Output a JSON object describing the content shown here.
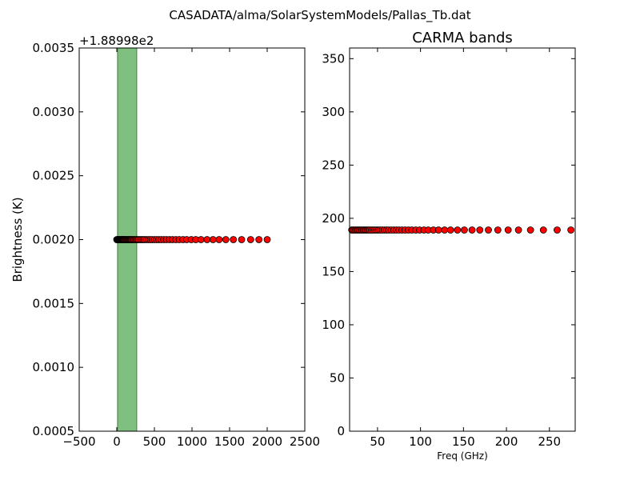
{
  "figure": {
    "title": "CASADATA/alma/SolarSystemModels/Pallas_Tb.dat"
  },
  "chart_data": [
    {
      "type": "scatter",
      "title": "",
      "xlabel": "",
      "ylabel": "Brightness (K)",
      "offset_label": "+1.88998e2",
      "xlim": [
        -500,
        2500
      ],
      "ylim": [
        0.0005,
        0.0035
      ],
      "xticks": [
        -500,
        0,
        500,
        1000,
        1500,
        2000,
        2500
      ],
      "xtick_labels": [
        "−500",
        "0",
        "500",
        "1000",
        "1500",
        "2000",
        "2500"
      ],
      "yticks": [
        0.0005,
        0.001,
        0.0015,
        0.002,
        0.0025,
        0.003,
        0.0035
      ],
      "ytick_labels": [
        "0.0005",
        "0.0010",
        "0.0015",
        "0.0020",
        "0.0025",
        "0.0030",
        "0.0035"
      ],
      "band": {
        "x0": 10,
        "x1": 265,
        "color": "#7fbf7f"
      },
      "marker_color": "#ff0000",
      "x": [
        0,
        5,
        10,
        15,
        20,
        25,
        30,
        35,
        40,
        45,
        50,
        55,
        60,
        65,
        70,
        75,
        80,
        85,
        90,
        95,
        100,
        110,
        120,
        130,
        140,
        150,
        160,
        170,
        180,
        190,
        200,
        215,
        230,
        245,
        260,
        275,
        290,
        310,
        330,
        350,
        370,
        395,
        420,
        445,
        470,
        500,
        530,
        560,
        590,
        625,
        660,
        700,
        740,
        785,
        830,
        880,
        930,
        990,
        1050,
        1120,
        1200,
        1280,
        1360,
        1450,
        1550,
        1660,
        1780,
        1890,
        2000
      ],
      "y": 0.002
    },
    {
      "type": "scatter",
      "title": "CARMA bands",
      "xlabel": "Freq (GHz)",
      "ylabel": "",
      "xlim": [
        17.5,
        280
      ],
      "ylim": [
        0,
        360
      ],
      "xticks": [
        50,
        100,
        150,
        200,
        250
      ],
      "xtick_labels": [
        "50",
        "100",
        "150",
        "200",
        "250"
      ],
      "yticks": [
        0,
        50,
        100,
        150,
        200,
        250,
        300,
        350
      ],
      "ytick_labels": [
        "0",
        "50",
        "100",
        "150",
        "200",
        "250",
        "300",
        "350"
      ],
      "marker_color": "#ff0000",
      "x": [
        20,
        21.5,
        23,
        24.5,
        26,
        27.5,
        29,
        30.5,
        32,
        33.5,
        35,
        36.5,
        38,
        39.5,
        41,
        43,
        45,
        47,
        49,
        51,
        53,
        55.5,
        58,
        60.5,
        63,
        66,
        69,
        72,
        75,
        78.5,
        82,
        86,
        90,
        94.5,
        99,
        104,
        109,
        115,
        121,
        128,
        135,
        143,
        151,
        160,
        169,
        179,
        190,
        202,
        214,
        228,
        243,
        259,
        275
      ],
      "y": 188.998
    }
  ]
}
